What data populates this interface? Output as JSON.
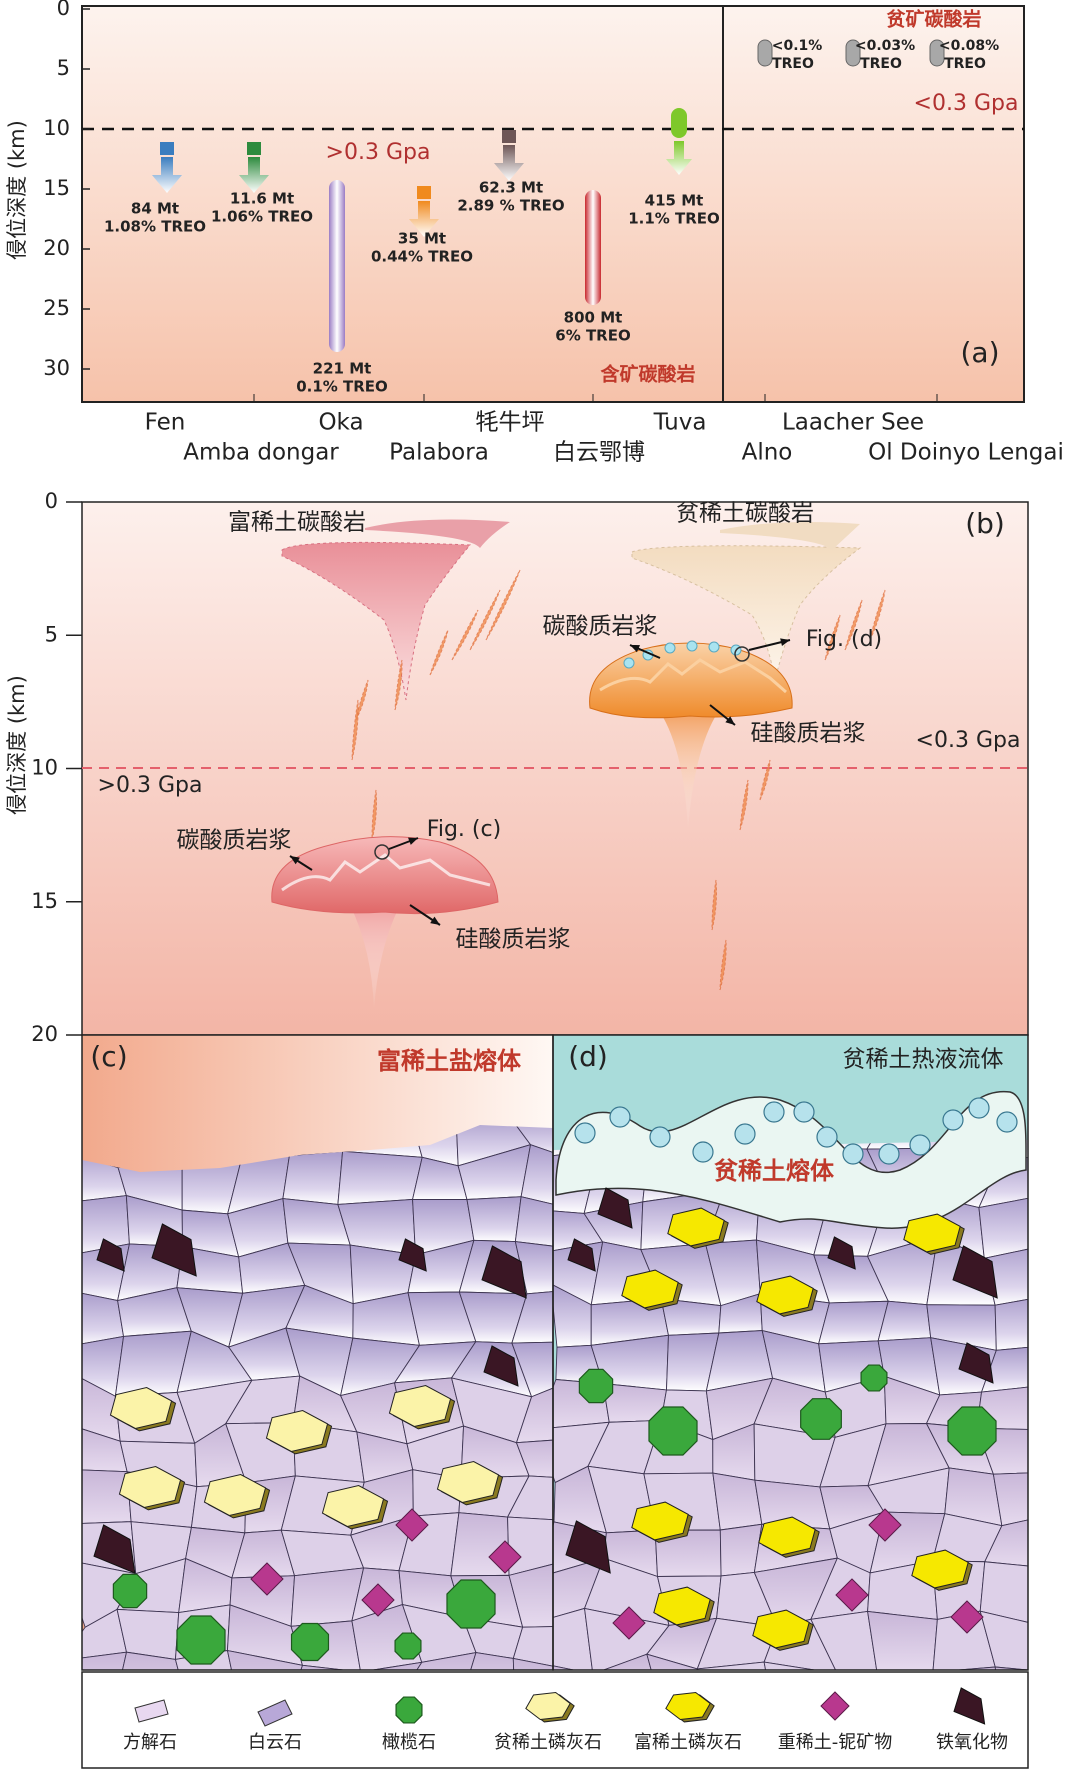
{
  "panel_a": {
    "label": "(a)",
    "y_axis_title": "侵位深度 (km)",
    "y_ticks": [
      "0",
      "5",
      "10",
      "15",
      "20",
      "25",
      "30"
    ],
    "ore_carbonatite": "含矿碳酸岩",
    "barren_carbonatite": "贫矿碳酸岩",
    "pressure_high": ">0.3 Gpa",
    "pressure_low": "<0.3 Gpa",
    "deposits": [
      {
        "tonnage": "84 Mt",
        "grade": "1.08% TREO"
      },
      {
        "tonnage": "11.6 Mt",
        "grade": "1.06% TREO"
      },
      {
        "tonnage": "221 Mt",
        "grade": "0.1% TREO"
      },
      {
        "tonnage": "35 Mt",
        "grade": "0.44% TREO"
      },
      {
        "tonnage": "62.3 Mt",
        "grade": "2.89 % TREO"
      },
      {
        "tonnage": "800 Mt",
        "grade": "6% TREO"
      },
      {
        "tonnage": "415 Mt",
        "grade": "1.1% TREO"
      }
    ],
    "barren": [
      {
        "grade": "<0.1%",
        "unit": "TREO"
      },
      {
        "grade": "<0.03%",
        "unit": "TREO"
      },
      {
        "grade": "<0.08%",
        "unit": "TREO"
      }
    ],
    "localities": [
      "Fen",
      "Amba dongar",
      "Oka",
      "Palabora",
      "牦牛坪",
      "白云鄂博",
      "Tuva",
      "Alno",
      "Laacher See",
      "Ol Doinyo Lengai"
    ]
  },
  "panel_b": {
    "label": "(b)",
    "y_axis_title": "侵位深度 (km)",
    "y_ticks": [
      "0",
      "5",
      "10",
      "15",
      "20"
    ],
    "ree_rich_carbonatite": "富稀土碳酸岩",
    "ree_poor_carbonatite": "贫稀土碳酸岩",
    "carbonatite_magma_right": "碳酸质岩浆",
    "fig_d": "Fig. (d)",
    "silicate_magma_right": "硅酸质岩浆",
    "pressure_low": "<0.3 Gpa",
    "pressure_high": ">0.3 Gpa",
    "carbonatite_magma_left": "碳酸质岩浆",
    "fig_c": "Fig. (c)",
    "silicate_magma_left": "硅酸质岩浆"
  },
  "panel_c": {
    "label": "(c)",
    "title": "富稀土盐熔体"
  },
  "panel_d": {
    "label": "(d)",
    "title": "贫稀土热液流体",
    "melt": "贫稀土熔体"
  },
  "legend": [
    "方解石",
    "白云石",
    "橄榄石",
    "贫稀土磷灰石",
    "富稀土磷灰石",
    "重稀土-铌矿物",
    "铁氧化物"
  ]
}
